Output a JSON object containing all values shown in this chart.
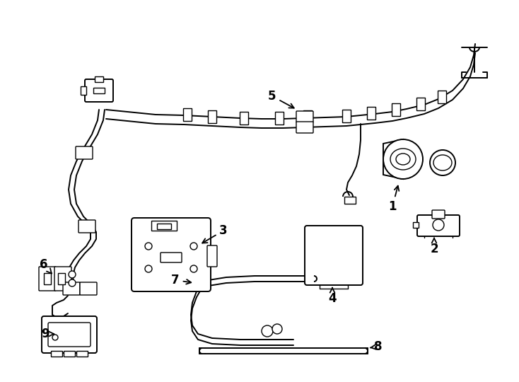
{
  "bg_color": "#ffffff",
  "line_color": "#000000",
  "line_width": 1.4,
  "fig_width": 7.34,
  "fig_height": 5.4,
  "dpi": 100
}
